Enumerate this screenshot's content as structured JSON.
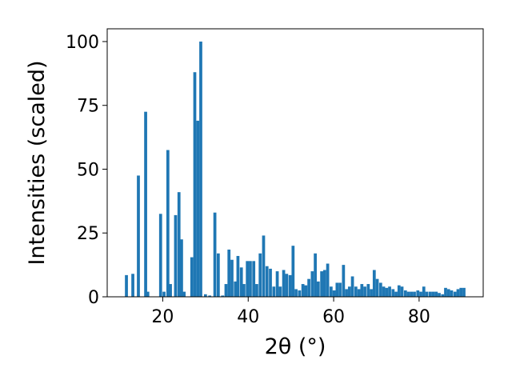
{
  "chart_data": {
    "type": "bar",
    "title": "",
    "xlabel": "2θ (°)",
    "ylabel": "Intensities (scaled)",
    "xlim": [
      7,
      95
    ],
    "ylim": [
      0,
      105
    ],
    "xticks": [
      20,
      40,
      60,
      80
    ],
    "yticks": [
      0,
      25,
      50,
      75,
      100
    ],
    "grid": false,
    "legend": "none",
    "bar_width": 0.7,
    "bar_color": "#1f77b4",
    "x": [
      11.5,
      13.0,
      14.3,
      16.0,
      16.5,
      19.5,
      20.3,
      21.2,
      21.8,
      23.0,
      23.8,
      24.4,
      25.0,
      26.8,
      27.5,
      28.2,
      28.9,
      30.0,
      31.0,
      32.2,
      33.0,
      34.0,
      34.8,
      35.5,
      36.2,
      37.0,
      37.6,
      38.4,
      39.0,
      39.8,
      40.5,
      41.3,
      42.0,
      42.8,
      43.6,
      44.4,
      45.2,
      46.0,
      46.8,
      47.5,
      48.3,
      49.0,
      49.8,
      50.5,
      51.2,
      52.0,
      52.8,
      53.5,
      54.2,
      55.0,
      55.7,
      56.4,
      57.2,
      57.9,
      58.6,
      59.4,
      60.1,
      60.8,
      61.5,
      62.3,
      63.0,
      63.7,
      64.4,
      65.2,
      65.9,
      66.6,
      67.3,
      68.1,
      68.8,
      69.5,
      70.2,
      71.0,
      71.7,
      72.4,
      73.1,
      73.9,
      74.6,
      75.3,
      76.0,
      76.8,
      77.5,
      78.2,
      78.9,
      79.7,
      80.4,
      81.1,
      81.8,
      82.6,
      83.3,
      84.0,
      84.7,
      85.5,
      86.2,
      86.9,
      87.6,
      88.4,
      89.1,
      89.8,
      90.5
    ],
    "values": [
      8.5,
      9,
      47.5,
      72.5,
      2,
      32.5,
      2,
      57.5,
      5,
      32,
      41,
      22.5,
      2,
      15.5,
      88,
      69,
      100,
      1,
      0.5,
      33,
      17,
      0.5,
      5,
      18.5,
      14.5,
      6,
      16,
      11.5,
      5,
      14,
      14,
      14,
      5,
      17,
      24,
      12,
      11,
      4,
      10,
      4,
      10.5,
      9,
      8.5,
      20,
      3,
      2.5,
      5,
      4.5,
      7,
      10,
      17,
      6,
      10,
      10.5,
      13,
      4,
      2.5,
      5.5,
      5.5,
      12.5,
      3,
      4,
      8,
      4,
      3,
      5,
      4,
      5,
      3,
      10.5,
      7,
      5.5,
      4,
      3.5,
      4,
      3,
      2,
      4.5,
      4,
      2.5,
      2,
      2,
      2,
      2.5,
      2,
      4,
      2,
      2,
      2,
      2,
      1.5,
      1,
      3.5,
      3,
      2.5,
      2,
      3,
      3.5,
      3.5
    ]
  }
}
